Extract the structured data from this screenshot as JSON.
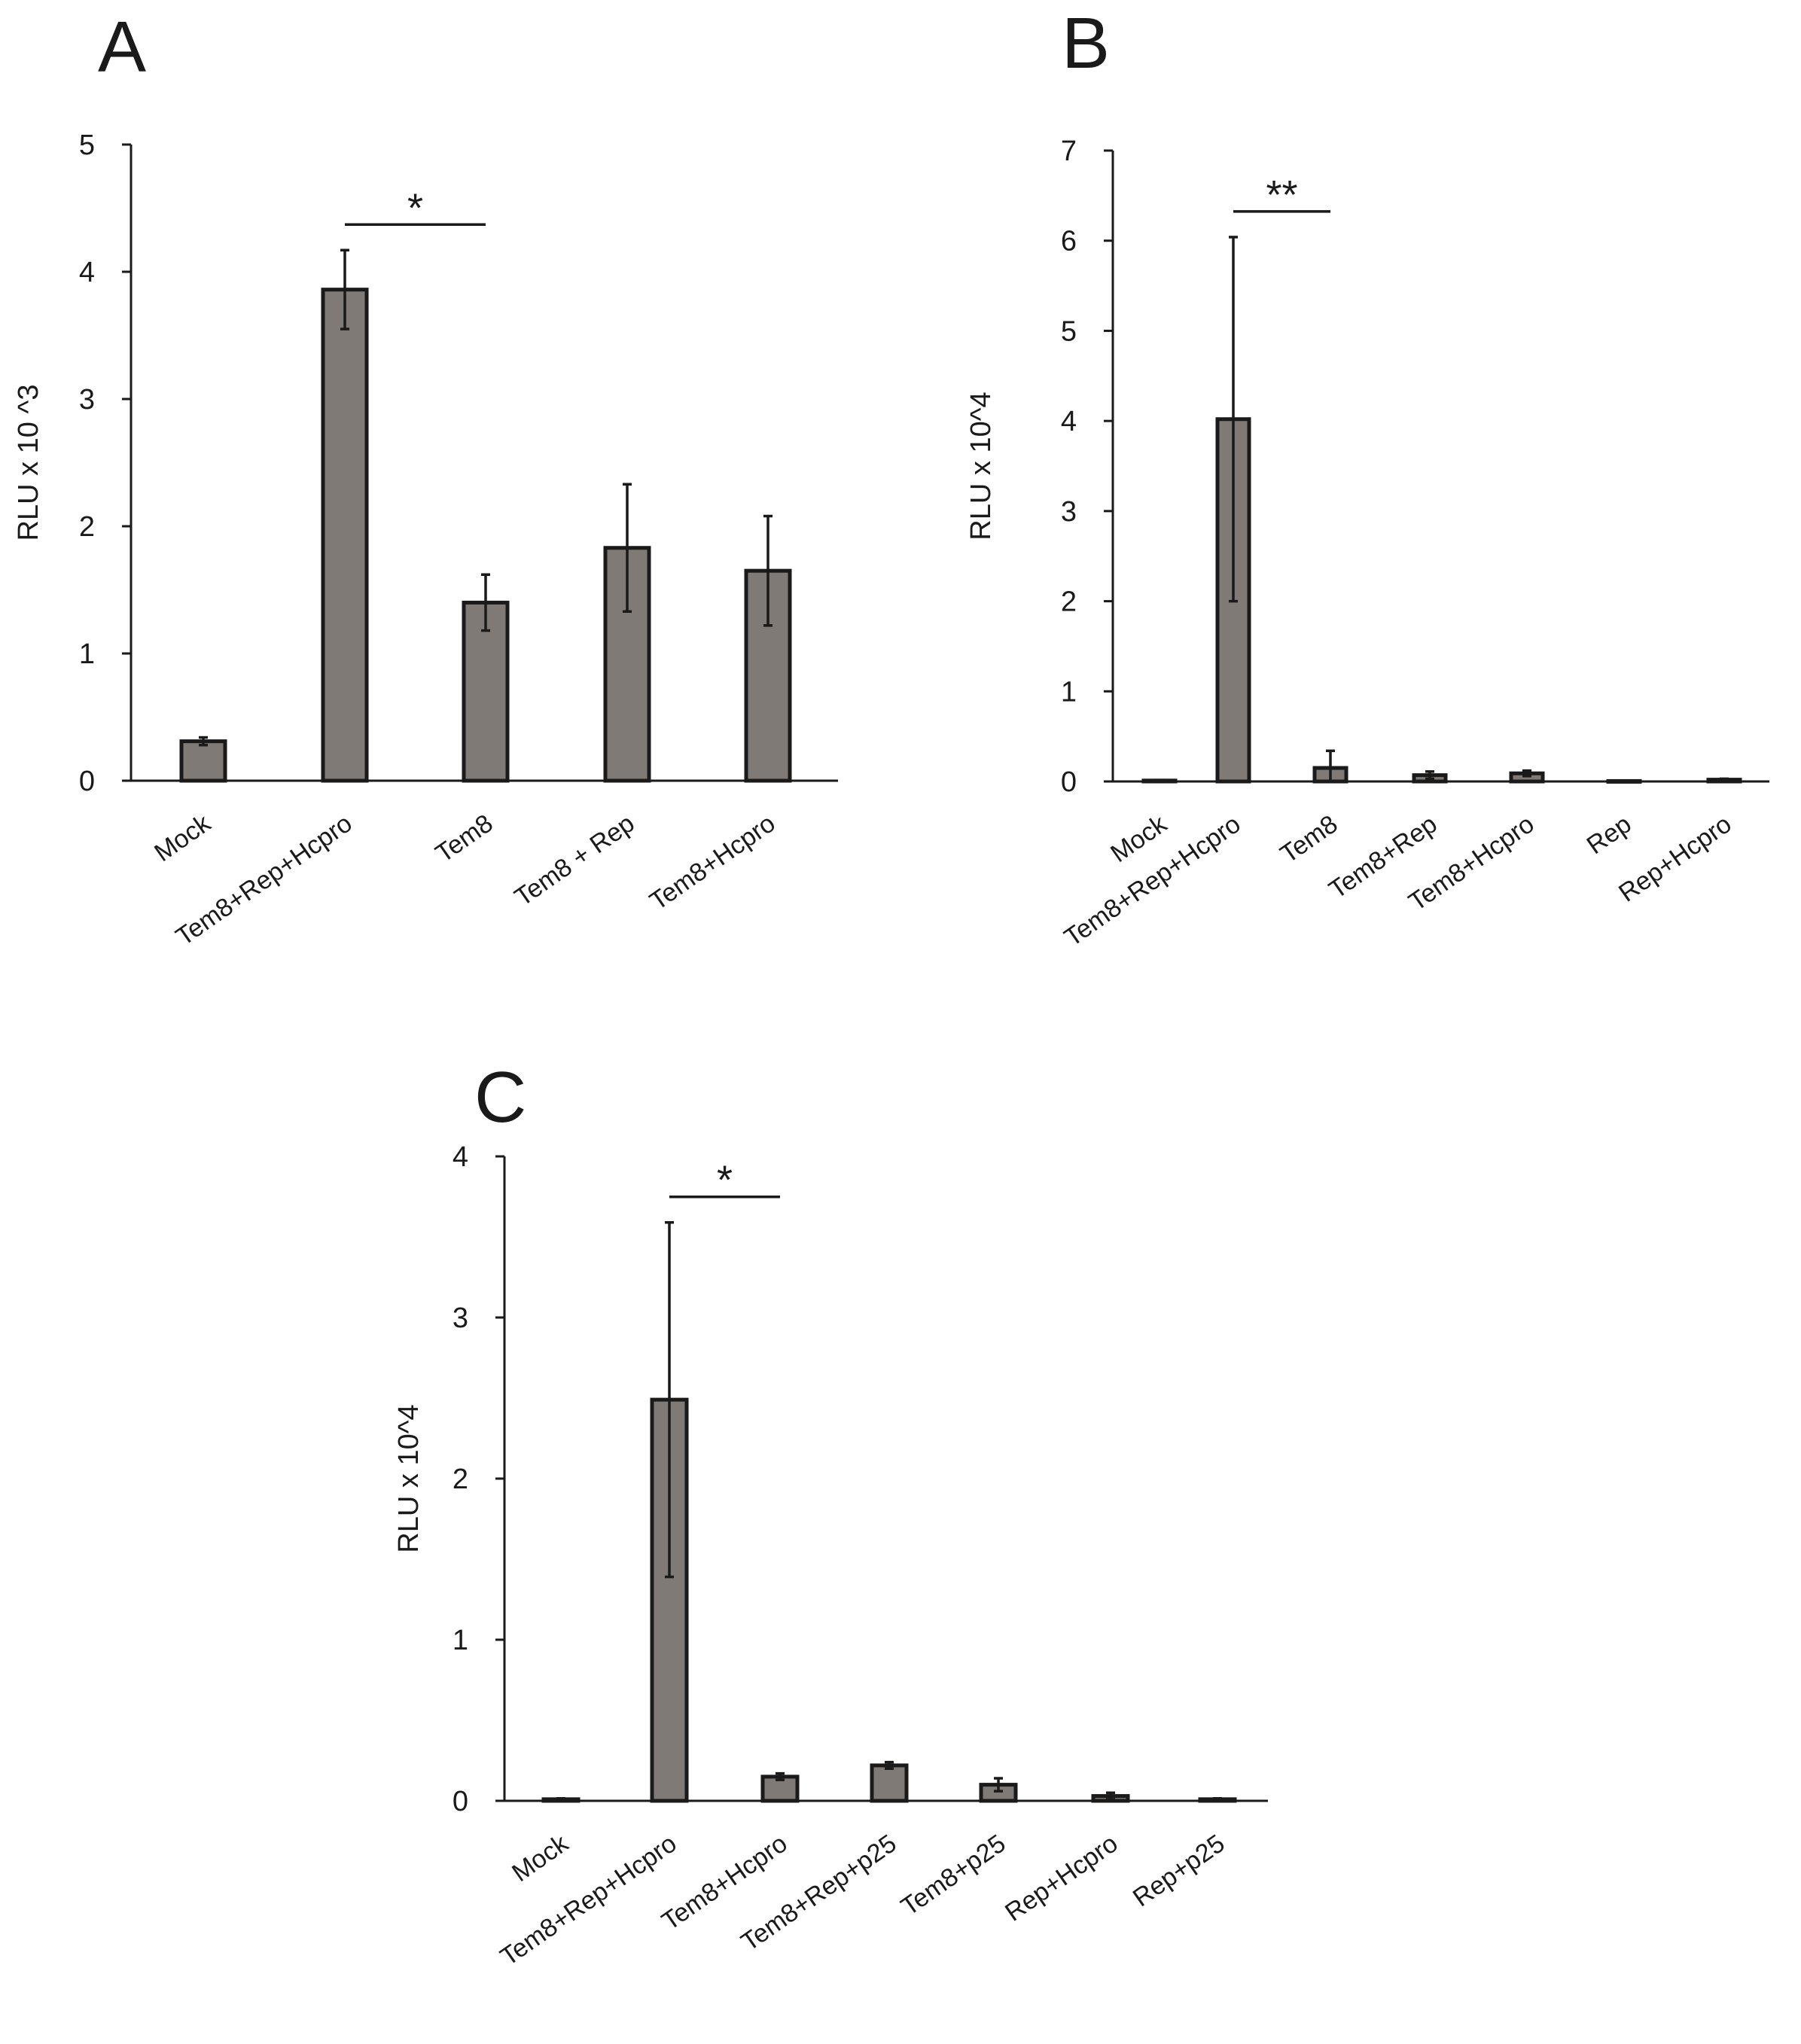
{
  "chart_data": [
    {
      "panel": "A",
      "type": "bar",
      "ylabel": "RLU x 10 ^3",
      "ylim": [
        0,
        5
      ],
      "yticks": [
        "0",
        "1",
        "2",
        "3",
        "4",
        "5"
      ],
      "grid": false,
      "categories": [
        "Mock",
        "Tem8+Rep+Hcpro",
        "Tem8",
        "Tem8 + Rep",
        "Tem8+Hcpro"
      ],
      "values": [
        0.31,
        3.86,
        1.4,
        1.83,
        1.65
      ],
      "error": [
        0.03,
        0.31,
        0.22,
        0.5,
        0.43
      ],
      "significance": {
        "label": "*",
        "from": 1,
        "to": 2
      }
    },
    {
      "panel": "B",
      "type": "bar",
      "ylabel": "RLU x 10^4",
      "ylim": [
        0,
        7
      ],
      "yticks": [
        "0",
        "1",
        "2",
        "3",
        "4",
        "5",
        "6",
        "7"
      ],
      "grid": false,
      "categories": [
        "Mock",
        "Tem8+Rep+Hcpro",
        "Tem8",
        "Tem8+Rep",
        "Tem8+Hcpro",
        "Rep",
        "Rep+Hcpro"
      ],
      "values": [
        0.01,
        4.02,
        0.15,
        0.07,
        0.09,
        0.005,
        0.02
      ],
      "error": [
        0.005,
        2.02,
        0.19,
        0.04,
        0.03,
        0.003,
        0.01
      ],
      "significance": {
        "label": "**",
        "from": 1,
        "to": 2
      }
    },
    {
      "panel": "C",
      "type": "bar",
      "ylabel": "RLU x 10^4",
      "ylim": [
        0,
        4
      ],
      "yticks": [
        "0",
        "1",
        "2",
        "3",
        "4"
      ],
      "grid": false,
      "categories": [
        "Mock",
        "Tem8+Rep+Hcpro",
        "Tem8+Hcpro",
        "Tem8+Rep+p25",
        "Tem8+p25",
        "Rep+Hcpro",
        "Rep+p25"
      ],
      "values": [
        0.01,
        2.49,
        0.15,
        0.22,
        0.1,
        0.03,
        0.01
      ],
      "error": [
        0.005,
        1.1,
        0.02,
        0.02,
        0.04,
        0.02,
        0.005
      ],
      "significance": {
        "label": "*",
        "from": 1,
        "to": 2
      }
    }
  ]
}
